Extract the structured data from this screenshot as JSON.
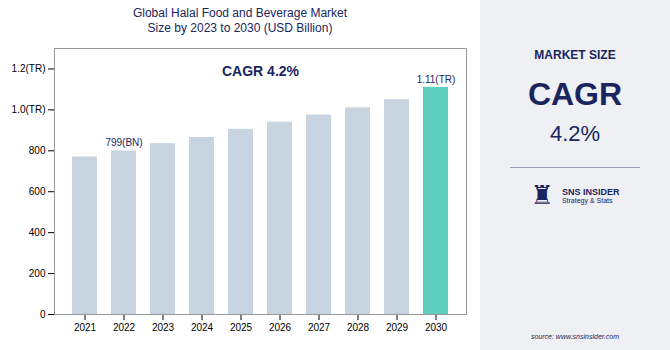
{
  "chart_data": {
    "type": "bar",
    "title": "Global Halal Food and Beverage Market\nSize by 2023 to 2030 (USD Billion)",
    "categories": [
      "2021",
      "2022",
      "2023",
      "2024",
      "2025",
      "2026",
      "2027",
      "2028",
      "2029",
      "2030"
    ],
    "values": [
      770,
      799,
      835,
      865,
      905,
      940,
      975,
      1010,
      1050,
      1110
    ],
    "colors": [
      "#c8d4e0",
      "#c8d4e0",
      "#c8d4e0",
      "#c8d4e0",
      "#c8d4e0",
      "#c8d4e0",
      "#c8d4e0",
      "#c8d4e0",
      "#c8d4e0",
      "#5ecfbf"
    ],
    "ylim": [
      0,
      1300
    ],
    "yticks": [
      0,
      200,
      400,
      600,
      800,
      {
        "value": 1000,
        "label": "1.0(TR)"
      },
      {
        "value": 1200,
        "label": "1.2(TR)"
      }
    ],
    "grid": false,
    "annotations": [
      {
        "text": "799(BN)",
        "x": "2022"
      },
      {
        "text": "1.11(TR)",
        "x": "2030"
      },
      {
        "text": "CAGR 4.2%"
      }
    ],
    "side_panel": [
      "MARKET SIZE",
      "CAGR",
      "4.2%",
      "♜",
      "SNS INSIDER",
      "Strategy & Stats",
      "source: www.snsinsider.com"
    ]
  }
}
